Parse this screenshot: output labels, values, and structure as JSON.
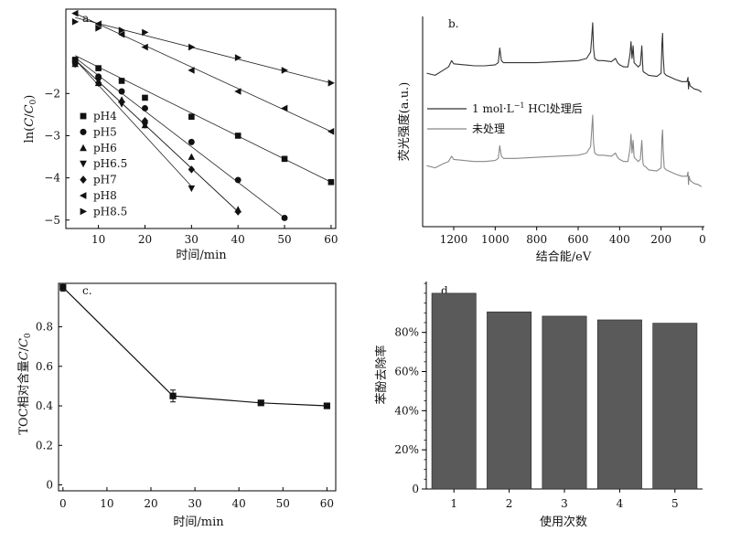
{
  "chart_data": [
    {
      "id": "a",
      "type": "scatter",
      "panel_label": "a.",
      "xlabel": "时间/min",
      "ylabel": "ln(C/C0)",
      "ylabel_parts": {
        "pre": "ln(",
        "c": "C",
        "slash": "/",
        "c0": "C",
        "sub": "0",
        "post": ")"
      },
      "xlim": [
        3,
        61
      ],
      "ylim": [
        -5.2,
        0
      ],
      "xticks": [
        10,
        20,
        30,
        40,
        50,
        60
      ],
      "xtick_labels": [
        "10",
        "20",
        "30",
        "40",
        "50",
        "60"
      ],
      "yticks": [
        -2,
        -3,
        -4,
        -5
      ],
      "ytick_labels": [
        "−2",
        "−3",
        "−4",
        "−5"
      ],
      "legend_position": "bottom-left",
      "series": [
        {
          "name": "pH4",
          "marker": "square",
          "x": [
            5,
            10,
            15,
            20,
            30,
            40,
            50,
            60
          ],
          "y": [
            -1.2,
            -1.4,
            -1.7,
            -2.1,
            -2.55,
            -3.0,
            -3.55,
            -4.1
          ],
          "fit": [
            [
              5,
              -1.1
            ],
            [
              60,
              -4.1
            ]
          ]
        },
        {
          "name": "pH5",
          "marker": "circle",
          "x": [
            5,
            10,
            15,
            20,
            30,
            40,
            50
          ],
          "y": [
            -1.25,
            -1.6,
            -1.95,
            -2.35,
            -3.15,
            -4.05,
            -4.95
          ],
          "fit": [
            [
              5,
              -1.15
            ],
            [
              50,
              -4.95
            ]
          ]
        },
        {
          "name": "pH6",
          "marker": "triangle-up",
          "x": [
            5,
            10,
            15,
            20,
            30,
            40
          ],
          "y": [
            -1.3,
            -1.75,
            -2.15,
            -2.75,
            -3.5,
            -4.75
          ],
          "fit": [
            [
              5,
              -1.2
            ],
            [
              40,
              -4.8
            ]
          ]
        },
        {
          "name": "pH6.5",
          "marker": "triangle-down",
          "x": [
            5,
            10,
            15,
            20,
            30
          ],
          "y": [
            -1.25,
            -1.7,
            -2.25,
            -2.75,
            -4.25
          ],
          "fit": [
            [
              5,
              -1.2
            ],
            [
              30,
              -4.2
            ]
          ]
        },
        {
          "name": "pH7",
          "marker": "diamond",
          "x": [
            5,
            10,
            15,
            20,
            30,
            40
          ],
          "y": [
            -1.3,
            -1.75,
            -2.2,
            -2.65,
            -3.8,
            -4.8
          ],
          "fit": [
            [
              5,
              -1.2
            ],
            [
              40,
              -4.8
            ]
          ]
        },
        {
          "name": "pH8",
          "marker": "triangle-left",
          "x": [
            5,
            10,
            15,
            20,
            30,
            40,
            50,
            60
          ],
          "y": [
            -0.1,
            -0.35,
            -0.6,
            -0.9,
            -1.45,
            -1.95,
            -2.35,
            -2.9
          ],
          "fit": [
            [
              5,
              -0.1
            ],
            [
              60,
              -2.9
            ]
          ]
        },
        {
          "name": "pH8.5",
          "marker": "triangle-right",
          "x": [
            5,
            10,
            15,
            20,
            30,
            40,
            50,
            60
          ],
          "y": [
            -0.3,
            -0.45,
            -0.5,
            -0.55,
            -0.9,
            -1.15,
            -1.45,
            -1.75
          ],
          "fit": [
            [
              5,
              -0.2
            ],
            [
              60,
              -1.75
            ]
          ]
        }
      ]
    },
    {
      "id": "b",
      "type": "line",
      "panel_label": "b.",
      "title": "",
      "xlabel": "结合能/eV",
      "ylabel": "荧光强度(a.u.)",
      "xlim": [
        1350,
        0
      ],
      "ylim": [
        0,
        1
      ],
      "xticks": [
        1200,
        1000,
        800,
        600,
        400,
        200,
        0
      ],
      "xtick_labels": [
        "1200",
        "1000",
        "800",
        "600",
        "400",
        "200",
        "0"
      ],
      "legend_position": "center-left",
      "series": [
        {
          "name": "1 mol·L−1 HCl处理后",
          "legend_parts": {
            "pre": "1 mol·L",
            "sup": "−1",
            "post": " HCl处理后"
          },
          "color": "#333333",
          "baseline": 0.73,
          "x": [
            1330,
            1290,
            1250,
            1225,
            1210,
            1200,
            1150,
            1100,
            1050,
            1000,
            985,
            978,
            970,
            960,
            900,
            800,
            700,
            600,
            560,
            540,
            535,
            530,
            526,
            520,
            505,
            480,
            440,
            420,
            410,
            400,
            380,
            360,
            350,
            345,
            340,
            335,
            330,
            310,
            300,
            293,
            287,
            283,
            275,
            260,
            220,
            200,
            196,
            193,
            190,
            185,
            175,
            130,
            100,
            75,
            70,
            68,
            65,
            60,
            40,
            20,
            5
          ],
          "y": [
            0.73,
            0.72,
            0.745,
            0.76,
            0.79,
            0.775,
            0.77,
            0.765,
            0.765,
            0.77,
            0.78,
            0.85,
            0.79,
            0.78,
            0.78,
            0.78,
            0.785,
            0.79,
            0.8,
            0.83,
            0.89,
            0.97,
            0.85,
            0.8,
            0.79,
            0.79,
            0.785,
            0.8,
            0.78,
            0.77,
            0.76,
            0.76,
            0.82,
            0.88,
            0.8,
            0.86,
            0.78,
            0.76,
            0.77,
            0.86,
            0.74,
            0.735,
            0.73,
            0.72,
            0.715,
            0.73,
            0.87,
            0.92,
            0.82,
            0.73,
            0.72,
            0.7,
            0.69,
            0.69,
            0.71,
            0.655,
            0.69,
            0.67,
            0.655,
            0.65,
            0.64
          ]
        },
        {
          "name": "未处理",
          "color": "#888888",
          "baseline": 0.28,
          "x": [
            1330,
            1290,
            1250,
            1225,
            1210,
            1200,
            1150,
            1100,
            1050,
            1000,
            985,
            978,
            970,
            960,
            900,
            800,
            700,
            600,
            560,
            540,
            535,
            530,
            526,
            520,
            505,
            480,
            440,
            420,
            410,
            400,
            380,
            360,
            350,
            345,
            340,
            335,
            330,
            310,
            300,
            293,
            287,
            283,
            275,
            260,
            220,
            200,
            196,
            193,
            190,
            185,
            175,
            130,
            100,
            75,
            70,
            68,
            65,
            60,
            40,
            20,
            5
          ],
          "y": [
            0.29,
            0.28,
            0.3,
            0.31,
            0.335,
            0.32,
            0.315,
            0.31,
            0.31,
            0.315,
            0.325,
            0.385,
            0.335,
            0.325,
            0.325,
            0.33,
            0.335,
            0.34,
            0.35,
            0.38,
            0.45,
            0.53,
            0.4,
            0.35,
            0.34,
            0.34,
            0.335,
            0.35,
            0.33,
            0.32,
            0.31,
            0.31,
            0.37,
            0.44,
            0.35,
            0.41,
            0.33,
            0.31,
            0.32,
            0.41,
            0.3,
            0.29,
            0.285,
            0.27,
            0.265,
            0.28,
            0.42,
            0.46,
            0.37,
            0.28,
            0.27,
            0.25,
            0.24,
            0.24,
            0.26,
            0.2,
            0.24,
            0.22,
            0.205,
            0.2,
            0.19
          ]
        }
      ]
    },
    {
      "id": "c",
      "type": "line",
      "panel_label": "c.",
      "xlabel": "时间/min",
      "ylabel": "TOC相对含量C/C0",
      "ylabel_parts": {
        "pre": "TOC相对含量",
        "c": "C",
        "slash": "/",
        "c0": "C",
        "sub": "0"
      },
      "xlim": [
        -1,
        62
      ],
      "ylim": [
        -0.03,
        1.02
      ],
      "xticks": [
        0,
        10,
        20,
        30,
        40,
        50,
        60
      ],
      "xtick_labels": [
        "0",
        "10",
        "20",
        "30",
        "40",
        "50",
        "60"
      ],
      "yticks": [
        0,
        0.2,
        0.4,
        0.6,
        0.8
      ],
      "ytick_labels": [
        "0",
        "0.2",
        "0.4",
        "0.6",
        "0.8"
      ],
      "series": [
        {
          "name": "TOC",
          "marker": "square",
          "x": [
            0,
            25,
            45,
            60
          ],
          "y": [
            1.0,
            0.45,
            0.415,
            0.4
          ],
          "error": [
            0.02,
            0.03,
            0.01,
            0.01
          ]
        }
      ]
    },
    {
      "id": "d",
      "type": "bar",
      "panel_label": "d.",
      "xlabel": "使用次数",
      "ylabel": "苯酚去除率",
      "categories": [
        "1",
        "2",
        "3",
        "4",
        "5"
      ],
      "values": [
        100,
        90.5,
        88.3,
        86.4,
        84.7
      ],
      "unit": "%",
      "ylim": [
        0,
        106
      ],
      "yticks": [
        0,
        20,
        40,
        60,
        80
      ],
      "ytick_labels": [
        "0",
        "20%",
        "40%",
        "60%",
        "80%"
      ],
      "bar_color": "#5a5a5a"
    }
  ]
}
